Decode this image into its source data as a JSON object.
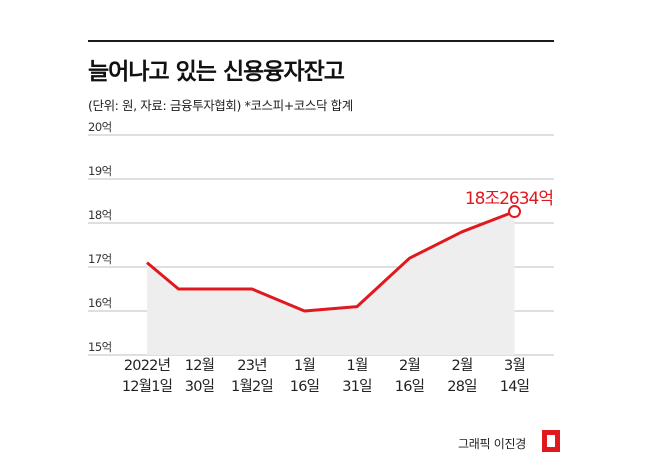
{
  "header": {
    "title": "늘어나고 있는 신용융자잔고",
    "subtitle": "(단위: 원, 자료: 금융투자협회)   *코스피+코스닥 합계"
  },
  "chart_data": {
    "type": "area",
    "title": "늘어나고 있는 신용융자잔고",
    "ylabel": "",
    "xlabel": "",
    "ylim": [
      15,
      20
    ],
    "yticks": [
      "15억",
      "16억",
      "17억",
      "18억",
      "19억",
      "20억"
    ],
    "categories": [
      [
        "2022년",
        "12월1일"
      ],
      [
        "12월",
        "30일"
      ],
      [
        "23년",
        "1월2일"
      ],
      [
        "1월",
        "16일"
      ],
      [
        "1월",
        "31일"
      ],
      [
        "2월",
        "16일"
      ],
      [
        "2월",
        "28일"
      ],
      [
        "3월",
        "14일"
      ]
    ],
    "series": [
      {
        "x": [
          0,
          0.6,
          1,
          1.5,
          2,
          3,
          4,
          5,
          6,
          7
        ],
        "values": [
          17.1,
          16.5,
          16.5,
          16.5,
          16.5,
          16.0,
          16.1,
          17.2,
          17.8,
          18.26
        ]
      }
    ],
    "annotation": {
      "label": "18조2634억",
      "index": 9
    },
    "grid": true,
    "colors": {
      "line": "#e0191f",
      "fill": "#eeeeee",
      "grid": "#bfbfbf",
      "axis": "#333333"
    }
  },
  "footer": {
    "credit": "그래픽 이진경"
  }
}
